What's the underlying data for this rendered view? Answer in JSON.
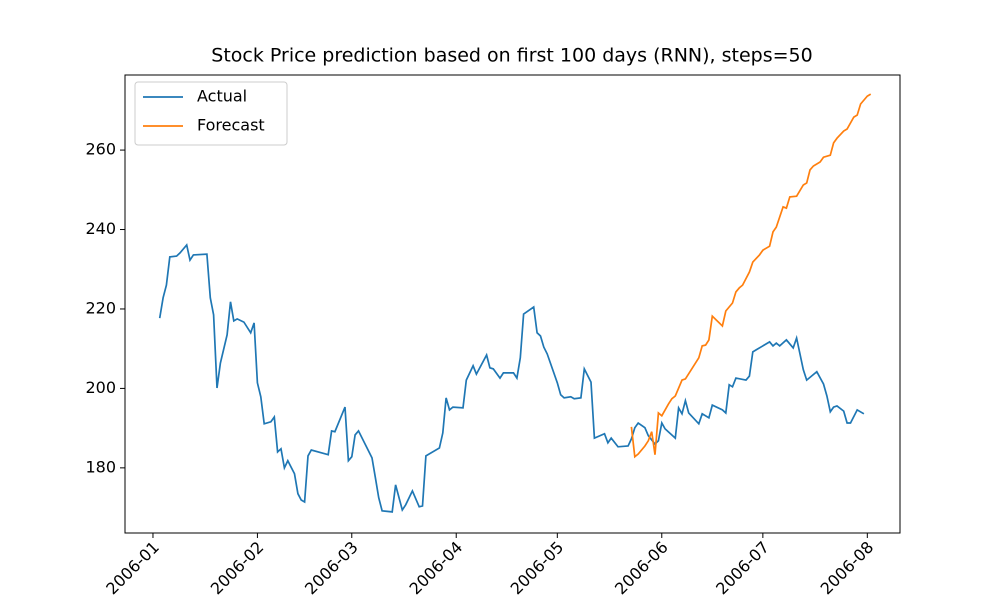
{
  "chart_data": {
    "type": "line",
    "title": "Stock Price prediction based on first 100 days (RNN), steps=50",
    "legend": "upper left",
    "xlim": [
      -8.3,
      221.7
    ],
    "xticks": [
      {
        "value": 0,
        "label": "2006-01"
      },
      {
        "value": 31,
        "label": "2006-02"
      },
      {
        "value": 59,
        "label": "2006-03"
      },
      {
        "value": 90,
        "label": "2006-04"
      },
      {
        "value": 120,
        "label": "2006-05"
      },
      {
        "value": 151,
        "label": "2006-06"
      },
      {
        "value": 181,
        "label": "2006-07"
      },
      {
        "value": 212,
        "label": "2006-08"
      }
    ],
    "ylim": [
      163.6,
      278.9
    ],
    "yticks": [
      180,
      200,
      220,
      240,
      260
    ],
    "series": [
      {
        "name": "Actual",
        "color": "#1f77b4",
        "x": [
          2,
          3,
          4,
          5,
          7,
          8,
          10,
          11,
          12,
          16,
          17,
          18,
          19,
          20,
          22,
          23,
          24,
          25,
          27,
          29,
          30,
          31,
          32,
          33,
          35,
          36,
          37,
          38,
          39,
          40,
          42,
          43,
          44,
          45,
          46,
          47,
          50,
          52,
          53,
          54,
          57,
          58,
          59,
          60,
          61,
          65,
          66,
          67,
          68,
          71,
          72,
          74,
          75,
          77,
          79,
          80,
          81,
          85,
          86,
          87,
          88,
          89,
          92,
          93,
          95,
          96,
          99,
          100,
          101,
          103,
          104,
          107,
          108,
          109,
          110,
          113,
          114,
          115,
          116,
          117,
          120,
          121,
          122,
          124,
          125,
          127,
          128,
          130,
          131,
          134,
          135,
          136,
          138,
          141,
          142,
          143,
          144,
          146,
          147,
          149,
          150,
          151,
          152,
          155,
          156,
          157,
          158,
          159,
          162,
          163,
          165,
          166,
          169,
          170,
          171,
          172,
          173,
          176,
          177,
          178,
          179,
          183,
          184,
          185,
          186,
          188,
          190,
          191,
          193,
          194,
          197,
          199,
          200,
          201,
          202,
          203,
          205,
          206,
          207,
          209,
          211
        ],
        "values": [
          217.7,
          222.8,
          226.0,
          233.1,
          233.3,
          234.1,
          236.1,
          232.3,
          233.6,
          233.8,
          222.8,
          218.5,
          200.1,
          206.4,
          213.5,
          221.8,
          217.0,
          217.5,
          216.7,
          214.0,
          216.5,
          201.4,
          197.9,
          191.1,
          191.6,
          192.8,
          184.0,
          184.8,
          180.0,
          181.8,
          178.5,
          173.5,
          171.9,
          171.4,
          183.0,
          184.5,
          183.8,
          183.3,
          189.3,
          189.1,
          195.3,
          181.8,
          182.8,
          188.3,
          189.3,
          182.5,
          177.5,
          172.5,
          169.2,
          168.9,
          175.7,
          169.4,
          170.7,
          174.2,
          170.2,
          170.4,
          183.0,
          185.0,
          188.8,
          197.6,
          194.6,
          195.3,
          195.1,
          202.1,
          205.7,
          203.6,
          208.4,
          205.2,
          204.9,
          202.6,
          203.9,
          203.9,
          202.6,
          207.7,
          218.7,
          220.5,
          214.0,
          213.2,
          210.4,
          208.7,
          201.4,
          198.4,
          197.6,
          197.9,
          197.4,
          197.6,
          204.9,
          201.6,
          187.5,
          188.6,
          186.3,
          187.5,
          185.3,
          185.5,
          187.3,
          190.1,
          191.3,
          190.1,
          188.1,
          186.0,
          186.8,
          191.3,
          189.8,
          187.5,
          195.1,
          193.6,
          196.9,
          193.8,
          191.1,
          193.6,
          192.6,
          195.8,
          194.6,
          193.8,
          200.9,
          200.4,
          202.6,
          202.1,
          203.1,
          209.2,
          209.7,
          211.7,
          210.7,
          211.4,
          210.7,
          212.2,
          210.2,
          212.7,
          204.7,
          202.1,
          204.2,
          201.1,
          198.1,
          194.1,
          195.3,
          195.6,
          194.3,
          191.3,
          191.3,
          194.6,
          193.6
        ]
      },
      {
        "name": "Forecast",
        "color": "#ff7f0e",
        "x": [
          142,
          143,
          144,
          146,
          147,
          148,
          149,
          150,
          151,
          153,
          154,
          155,
          157,
          158,
          162,
          163,
          164,
          165,
          166,
          169,
          170,
          172,
          173,
          174,
          175,
          177,
          178,
          180,
          181,
          182,
          183,
          184,
          185,
          187,
          188,
          189,
          191,
          193,
          194,
          195,
          196,
          198,
          199,
          201,
          202,
          203,
          205,
          206,
          208,
          209,
          210,
          212,
          213
        ],
        "values": [
          190.3,
          182.8,
          183.5,
          185.5,
          186.8,
          189.1,
          183.3,
          193.8,
          193.1,
          196.1,
          197.4,
          198.1,
          202.1,
          202.4,
          207.7,
          210.7,
          210.9,
          212.2,
          218.2,
          215.7,
          219.5,
          221.5,
          224.3,
          225.3,
          226.0,
          229.3,
          231.8,
          233.6,
          234.8,
          235.3,
          235.8,
          239.4,
          240.6,
          245.7,
          245.4,
          248.2,
          248.4,
          251.2,
          251.7,
          255.0,
          256.0,
          257.0,
          258.2,
          258.7,
          261.8,
          263.0,
          264.8,
          265.3,
          268.3,
          268.8,
          271.6,
          273.6,
          274.1
        ]
      }
    ]
  }
}
